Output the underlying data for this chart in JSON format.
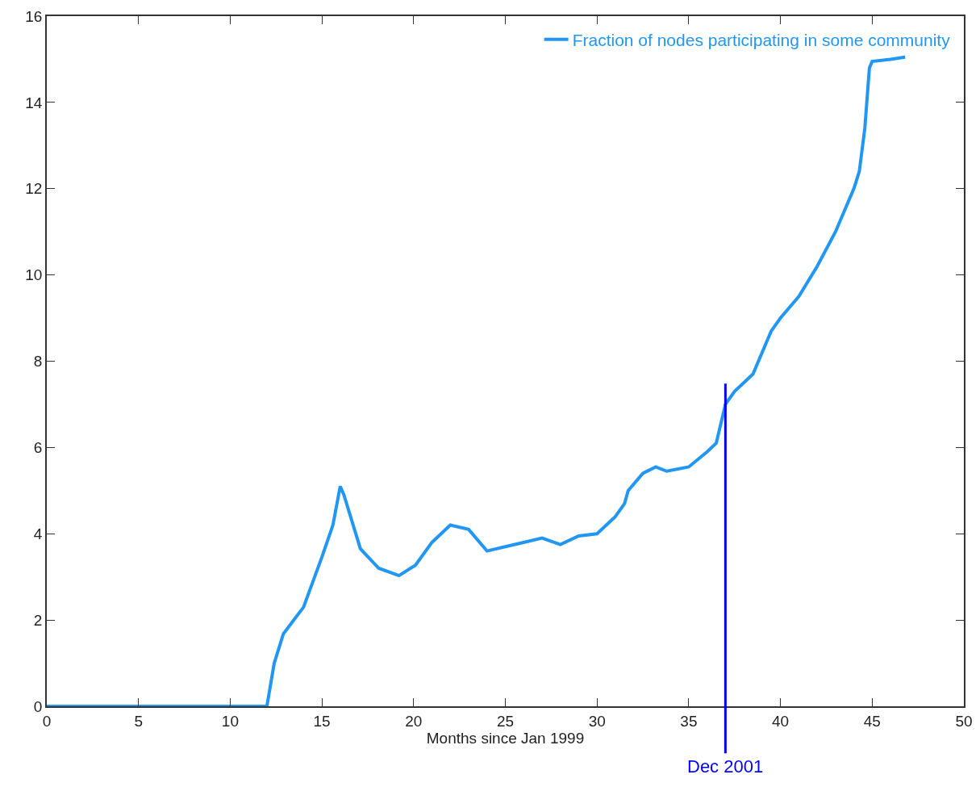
{
  "chart_data": {
    "type": "line",
    "xlabel": "Months since Jan 1999",
    "xlim": [
      0,
      50
    ],
    "xticks": [
      0,
      5,
      10,
      15,
      20,
      25,
      30,
      35,
      40,
      45,
      50
    ],
    "ylim": [
      0,
      16
    ],
    "yticks": [
      0,
      2,
      4,
      6,
      8,
      10,
      12,
      14,
      16
    ],
    "grid": false,
    "legend": "top right",
    "marker": "none",
    "line_style": "solid",
    "series": [
      {
        "name": "Fraction of nodes participating in some community",
        "color": "#2196f3",
        "x": [
          0,
          12,
          12.4,
          12.9,
          14,
          15,
          15.6,
          16,
          16.2,
          17.1,
          18.1,
          19.2,
          20.1,
          21,
          22,
          23,
          24,
          25,
          26,
          27,
          28,
          29,
          30,
          31,
          31.5,
          31.7,
          32.5,
          33.2,
          33.8,
          35,
          36,
          36.5,
          37,
          37.5,
          38.5,
          39.5,
          40,
          41,
          42,
          43,
          44,
          44.3,
          44.6,
          44.85,
          45,
          46,
          46.8
        ],
        "values": [
          0,
          0,
          1.0,
          1.68,
          2.3,
          3.46,
          4.2,
          5.1,
          4.9,
          3.65,
          3.2,
          3.03,
          3.27,
          3.8,
          4.2,
          4.1,
          3.6,
          3.7,
          3.8,
          3.9,
          3.75,
          3.95,
          4.0,
          4.4,
          4.7,
          5.0,
          5.4,
          5.55,
          5.45,
          5.55,
          5.9,
          6.1,
          7.0,
          7.3,
          7.7,
          8.7,
          9.0,
          9.5,
          10.2,
          11.0,
          12.0,
          12.4,
          13.4,
          14.8,
          14.95,
          15.0,
          15.05
        ]
      }
    ],
    "ref_lines": [
      {
        "axis": "x",
        "value": 37,
        "label": "Dec 2001",
        "color": "#0000ff"
      }
    ]
  }
}
